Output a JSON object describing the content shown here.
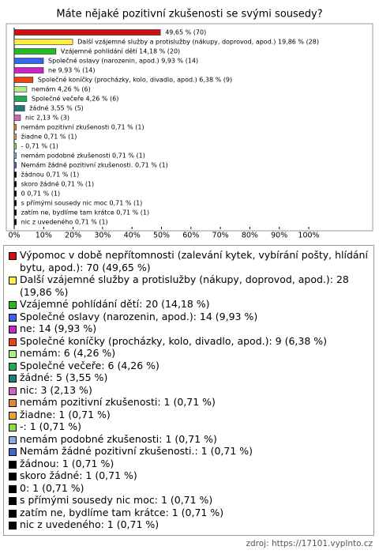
{
  "chart_data": {
    "type": "bar",
    "orientation": "horizontal",
    "title": "Máte nějaké pozitivní zkušenosti se svými sousedy?",
    "categories": [
      "Výpomoc v době nepřítomnosti (zalevání kytek, vybírání pošty, hlídání bytu, apod.)",
      "Další vzájemné služby a protislužby (nákupy, doprovod, apod.)",
      "Vzájemné pohlídání dětí",
      "Společné oslavy (narozenin, apod.)",
      "ne",
      "Společné koníčky (procházky, kolo, divadlo, apod.)",
      "nemám",
      "Společné večeře",
      "žádné",
      "nic",
      "nemám pozitivní zkušenosti",
      "žiadne",
      "-",
      "nemám podobné zkušenosti",
      "Nemám žádné pozitivní zkušenosti.",
      "žádnou",
      "skoro žádné",
      "0",
      "s přímými sousedy nic moc",
      "zatím ne, bydlíme tam krátce",
      "nic z uvedeného"
    ],
    "values": [
      49.65,
      19.86,
      14.18,
      9.93,
      9.93,
      6.38,
      4.26,
      4.26,
      3.55,
      2.13,
      0.71,
      0.71,
      0.71,
      0.71,
      0.71,
      0.71,
      0.71,
      0.71,
      0.71,
      0.71,
      0.71
    ],
    "value_labels": [
      "49,65 % (70)",
      "Další vzájemné služby a protislužby (nákupy, doprovod, apod.) 19,86 % (28)",
      "Vzájemné pohlídání dětí 14,18 % (20)",
      "Společné oslavy (narozenin, apod.) 9,93 % (14)",
      "ne 9,93 % (14)",
      "Společné koníčky (procházky, kolo, divadlo, apod.) 6,38 % (9)",
      "nemám 4,26 % (6)",
      "Společné večeře 4,26 % (6)",
      "žádné 3,55 % (5)",
      "nic 2,13 % (3)",
      "nemám pozitivní zkušenosti 0,71 % (1)",
      "žiadne 0,71 % (1)",
      "- 0,71 % (1)",
      "nemám podobné zkušenosti 0,71 % (1)",
      "Nemám žádné pozitivní zkušenosti. 0,71 % (1)",
      "žádnou 0,71 % (1)",
      "skoro žádné 0,71 % (1)",
      "0 0,71 % (1)",
      "s přímými sousedy nic moc 0,71 % (1)",
      "zatím ne, bydlíme tam krátce 0,71 % (1)",
      "nic z uvedeného 0,71 % (1)"
    ],
    "colors": [
      "#cc1111",
      "#ffee44",
      "#22bb22",
      "#3366ee",
      "#cc22cc",
      "#ee4411",
      "#aaee88",
      "#22aa55",
      "#227777",
      "#cc66bb",
      "#e8862a",
      "#f0a030",
      "#88dd44",
      "#88aadd",
      "#4466cc",
      "#000000",
      "#000000",
      "#000000",
      "#000000",
      "#000000",
      "#000000"
    ],
    "legend": [
      "Výpomoc v době nepřítomnosti (zalevání kytek, vybírání pošty, hlídání bytu, apod.): 70 (49,65 %)",
      "Další vzájemné služby a protislužby (nákupy, doprovod, apod.): 28 (19,86 %)",
      "Vzájemné pohlídání dětí: 20 (14,18 %)",
      "Společné oslavy (narozenin, apod.): 14 (9,93 %)",
      "ne: 14 (9,93 %)",
      "Společné koníčky (procházky, kolo, divadlo, apod.): 9 (6,38 %)",
      "nemám: 6 (4,26 %)",
      "Společné večeře: 6 (4,26 %)",
      "žádné: 5 (3,55 %)",
      "nic: 3 (2,13 %)",
      "nemám pozitivní zkušenosti: 1 (0,71 %)",
      "žiadne: 1 (0,71 %)",
      "-: 1 (0,71 %)",
      "nemám podobné zkušenosti: 1 (0,71 %)",
      "Nemám žádné pozitivní zkušenosti.: 1 (0,71 %)",
      "žádnou: 1 (0,71 %)",
      "skoro žádné: 1 (0,71 %)",
      "0: 1 (0,71 %)",
      "s přímými sousedy nic moc: 1 (0,71 %)",
      "zatím ne, bydlíme tam krátce: 1 (0,71 %)",
      "nic z uvedeného: 1 (0,71 %)"
    ],
    "xlim": [
      0,
      100
    ],
    "xticks": [
      {
        "value": 0,
        "label": "0%"
      },
      {
        "value": 10,
        "label": "10%"
      },
      {
        "value": 20,
        "label": "20%"
      },
      {
        "value": 30,
        "label": "30%"
      },
      {
        "value": 40,
        "label": "40%"
      },
      {
        "value": 50,
        "label": "50%"
      },
      {
        "value": 60,
        "label": "60%"
      },
      {
        "value": 70,
        "label": "70%"
      },
      {
        "value": 80,
        "label": "80%"
      },
      {
        "value": 90,
        "label": "90%"
      },
      {
        "value": 100,
        "label": "100%"
      }
    ],
    "source": "zdroj: https://17101.vyplnto.cz"
  }
}
